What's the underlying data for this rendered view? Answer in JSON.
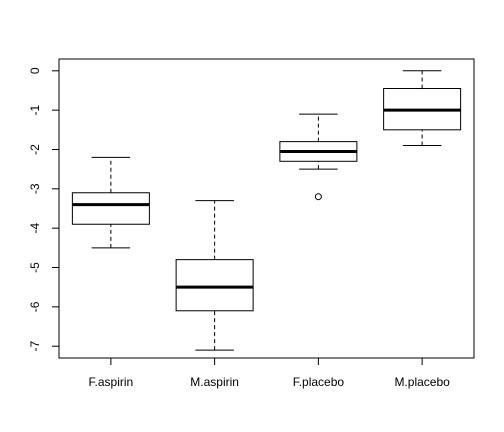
{
  "chart_data": {
    "type": "boxplot",
    "title": "",
    "xlabel": "",
    "ylabel": "",
    "ylim": [
      -7.3,
      0.3
    ],
    "yticks": [
      0,
      -1,
      -2,
      -3,
      -4,
      -5,
      -6,
      -7
    ],
    "ytick_labels": [
      "0",
      "-1",
      "-2",
      "-3",
      "-4",
      "-5",
      "-6",
      "-7"
    ],
    "grid": false,
    "categories": [
      "F.aspirin",
      "M.aspirin",
      "F.placebo",
      "M.placebo"
    ],
    "boxes": [
      {
        "category": "F.aspirin",
        "whisker_low": -4.5,
        "q1": -3.9,
        "median": -3.4,
        "q3": -3.1,
        "whisker_high": -2.2,
        "outliers": []
      },
      {
        "category": "M.aspirin",
        "whisker_low": -7.1,
        "q1": -6.1,
        "median": -5.5,
        "q3": -4.8,
        "whisker_high": -3.3,
        "outliers": []
      },
      {
        "category": "F.placebo",
        "whisker_low": -2.5,
        "q1": -2.3,
        "median": -2.05,
        "q3": -1.8,
        "whisker_high": -1.1,
        "outliers": [
          -3.2
        ]
      },
      {
        "category": "M.placebo",
        "whisker_low": -1.9,
        "q1": -1.5,
        "median": -1.0,
        "q3": -0.45,
        "whisker_high": 0.0,
        "outliers": []
      }
    ],
    "colors": {
      "box_fill": "#ffffff",
      "stroke": "#000000"
    }
  }
}
